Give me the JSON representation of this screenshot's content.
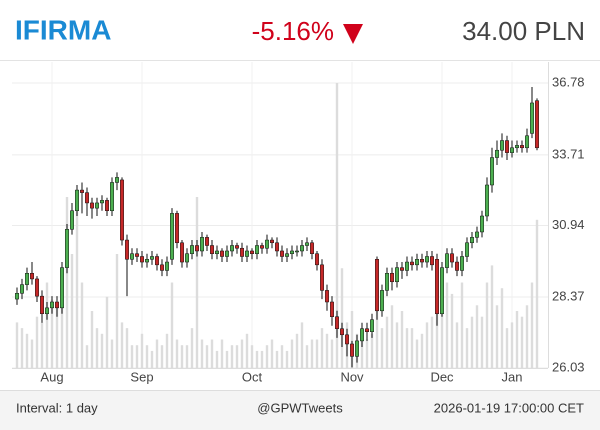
{
  "chart_data": {
    "type": "candlestick",
    "title": "IFIRMA",
    "change": "-5.16%",
    "price": "34.00 PLN",
    "interval": "Interval: 1 day",
    "source": "@GPWTweets",
    "timestamp": "2026-01-19 17:00:00 CET",
    "log_scale": true,
    "grid": true,
    "title_color": "#1a8ad4",
    "change_color": "#d0021b",
    "up_color": "#4caf50",
    "down_color": "#c62828",
    "volume_color": "#dcdcdc",
    "ylim": [
      26.03,
      36.78
    ],
    "yticks": [
      26.03,
      28.37,
      30.94,
      33.71,
      36.78
    ],
    "categories": [
      null,
      null,
      null,
      null,
      null,
      null,
      null,
      "Aug",
      null,
      null,
      null,
      null,
      null,
      null,
      null,
      null,
      null,
      null,
      null,
      null,
      null,
      null,
      null,
      null,
      null,
      "Sep",
      null,
      null,
      null,
      null,
      null,
      null,
      null,
      null,
      null,
      null,
      null,
      null,
      null,
      null,
      null,
      null,
      null,
      null,
      null,
      null,
      null,
      "Oct",
      null,
      null,
      null,
      null,
      null,
      null,
      null,
      null,
      null,
      null,
      null,
      null,
      null,
      null,
      null,
      null,
      null,
      null,
      null,
      "Nov",
      null,
      null,
      null,
      null,
      null,
      null,
      null,
      null,
      null,
      null,
      null,
      null,
      null,
      null,
      null,
      null,
      null,
      "Dec",
      null,
      null,
      null,
      null,
      null,
      null,
      null,
      null,
      null,
      null,
      null,
      null,
      null,
      "Jan",
      null,
      null,
      null,
      null,
      null
    ],
    "open": [
      28.3,
      28.5,
      28.8,
      29.2,
      29.0,
      28.4,
      27.8,
      28.0,
      28.2,
      28.0,
      29.4,
      30.8,
      31.5,
      32.3,
      32.2,
      31.8,
      31.6,
      31.8,
      31.9,
      31.5,
      32.6,
      32.7,
      30.4,
      29.7,
      29.9,
      29.8,
      29.6,
      29.7,
      29.8,
      29.5,
      29.3,
      29.7,
      31.4,
      30.3,
      29.6,
      29.9,
      30.2,
      30.0,
      30.5,
      30.2,
      29.9,
      30.0,
      29.8,
      30.0,
      30.2,
      30.1,
      29.8,
      30.0,
      29.9,
      30.2,
      30.1,
      30.4,
      30.3,
      30.0,
      29.8,
      29.9,
      30.0,
      30.0,
      30.2,
      30.3,
      29.9,
      29.5,
      28.6,
      28.2,
      27.7,
      27.3,
      27.1,
      26.8,
      26.4,
      26.9,
      27.3,
      27.2,
      29.7,
      27.9,
      28.6,
      29.2,
      28.9,
      29.4,
      29.3,
      29.6,
      29.5,
      29.7,
      29.6,
      29.8,
      29.7,
      27.8,
      29.4,
      29.9,
      29.6,
      29.3,
      29.8,
      30.3,
      30.5,
      30.7,
      31.3,
      32.5,
      33.6,
      33.9,
      34.3,
      33.8,
      34.0,
      34.1,
      34.0,
      34.6,
      36.0
    ],
    "high": [
      28.7,
      29.0,
      29.4,
      29.6,
      29.1,
      28.6,
      28.2,
      28.4,
      28.4,
      29.6,
      31.0,
      31.8,
      32.5,
      32.6,
      32.4,
      32.0,
      32.0,
      32.1,
      32.0,
      32.8,
      33.0,
      32.8,
      30.6,
      30.1,
      30.1,
      30.0,
      29.9,
      30.0,
      29.9,
      29.7,
      29.8,
      31.6,
      31.5,
      30.4,
      30.1,
      30.4,
      30.4,
      30.7,
      30.6,
      30.4,
      30.2,
      30.1,
      30.2,
      30.4,
      30.3,
      30.3,
      30.2,
      30.1,
      30.4,
      30.3,
      30.6,
      30.5,
      30.5,
      30.2,
      30.1,
      30.2,
      30.2,
      30.4,
      30.5,
      30.4,
      30.0,
      29.7,
      28.8,
      28.4,
      27.9,
      27.5,
      27.3,
      26.9,
      27.1,
      27.5,
      27.5,
      27.8,
      29.8,
      28.8,
      29.4,
      29.4,
      29.6,
      29.6,
      29.8,
      29.8,
      29.9,
      29.9,
      30.0,
      30.0,
      29.9,
      29.6,
      30.1,
      30.1,
      29.8,
      30.0,
      30.5,
      30.7,
      30.9,
      31.5,
      32.8,
      34.0,
      34.3,
      34.6,
      34.5,
      34.3,
      34.3,
      34.3,
      34.8,
      36.6,
      36.1
    ],
    "low": [
      28.1,
      28.3,
      28.6,
      28.8,
      28.2,
      27.5,
      27.6,
      27.8,
      27.7,
      27.8,
      29.2,
      30.6,
      31.3,
      31.4,
      31.3,
      31.2,
      31.3,
      31.5,
      31.3,
      31.3,
      32.3,
      30.2,
      28.4,
      29.5,
      29.6,
      29.4,
      29.4,
      29.5,
      29.3,
      29.1,
      29.1,
      29.5,
      30.1,
      29.4,
      29.4,
      29.7,
      29.8,
      29.8,
      30.0,
      29.7,
      29.7,
      29.6,
      29.6,
      29.8,
      29.9,
      29.6,
      29.6,
      29.7,
      29.7,
      29.9,
      29.9,
      30.1,
      29.8,
      29.6,
      29.6,
      29.7,
      29.8,
      29.8,
      30.0,
      29.7,
      29.3,
      28.3,
      27.9,
      27.4,
      27.0,
      26.7,
      26.4,
      26.05,
      26.2,
      26.7,
      26.9,
      27.0,
      27.6,
      27.7,
      28.4,
      28.6,
      28.7,
      29.0,
      29.1,
      29.3,
      29.3,
      29.4,
      29.4,
      29.3,
      27.4,
      27.7,
      29.2,
      29.4,
      29.1,
      29.1,
      29.6,
      30.1,
      30.3,
      30.5,
      31.1,
      32.2,
      33.3,
      33.6,
      33.5,
      33.6,
      33.8,
      33.8,
      33.8,
      34.4,
      33.9
    ],
    "close": [
      28.5,
      28.8,
      29.2,
      29.0,
      28.4,
      27.8,
      28.0,
      28.2,
      28.0,
      29.4,
      30.8,
      31.5,
      32.3,
      32.2,
      31.8,
      31.6,
      31.8,
      31.9,
      31.5,
      32.6,
      32.8,
      30.4,
      29.7,
      29.9,
      29.8,
      29.6,
      29.7,
      29.8,
      29.5,
      29.3,
      29.6,
      31.4,
      30.3,
      29.6,
      29.9,
      30.2,
      30.0,
      30.5,
      30.2,
      29.9,
      30.0,
      29.8,
      30.0,
      30.2,
      30.1,
      29.8,
      30.0,
      29.9,
      30.2,
      30.1,
      30.4,
      30.3,
      30.0,
      29.8,
      29.9,
      30.0,
      30.0,
      30.2,
      30.3,
      29.9,
      29.5,
      28.6,
      28.2,
      27.7,
      27.3,
      27.1,
      26.8,
      26.4,
      26.9,
      27.3,
      27.2,
      27.6,
      27.9,
      28.6,
      29.2,
      28.9,
      29.4,
      29.3,
      29.6,
      29.5,
      29.7,
      29.6,
      29.8,
      29.5,
      27.8,
      29.4,
      29.9,
      29.6,
      29.3,
      29.8,
      30.3,
      30.5,
      30.7,
      31.3,
      32.5,
      33.6,
      33.9,
      34.3,
      33.8,
      34.0,
      34.1,
      34.0,
      34.5,
      35.9,
      34.0
    ],
    "volume": [
      16,
      14,
      12,
      10,
      18,
      16,
      30,
      24,
      22,
      30,
      60,
      40,
      62,
      30,
      8,
      20,
      14,
      12,
      25,
      10,
      40,
      16,
      14,
      8,
      8,
      12,
      8,
      6,
      10,
      8,
      12,
      30,
      10,
      8,
      8,
      14,
      60,
      10,
      8,
      10,
      6,
      10,
      6,
      8,
      8,
      10,
      12,
      8,
      6,
      6,
      8,
      10,
      6,
      8,
      6,
      10,
      12,
      16,
      8,
      10,
      10,
      14,
      12,
      10,
      100,
      35,
      16,
      20,
      12,
      14,
      10,
      12,
      30,
      14,
      18,
      22,
      16,
      20,
      14,
      14,
      10,
      12,
      16,
      18,
      22,
      28,
      30,
      26,
      16,
      30,
      14,
      18,
      22,
      18,
      30,
      36,
      22,
      28,
      14,
      16,
      20,
      18,
      22,
      30,
      52
    ]
  }
}
